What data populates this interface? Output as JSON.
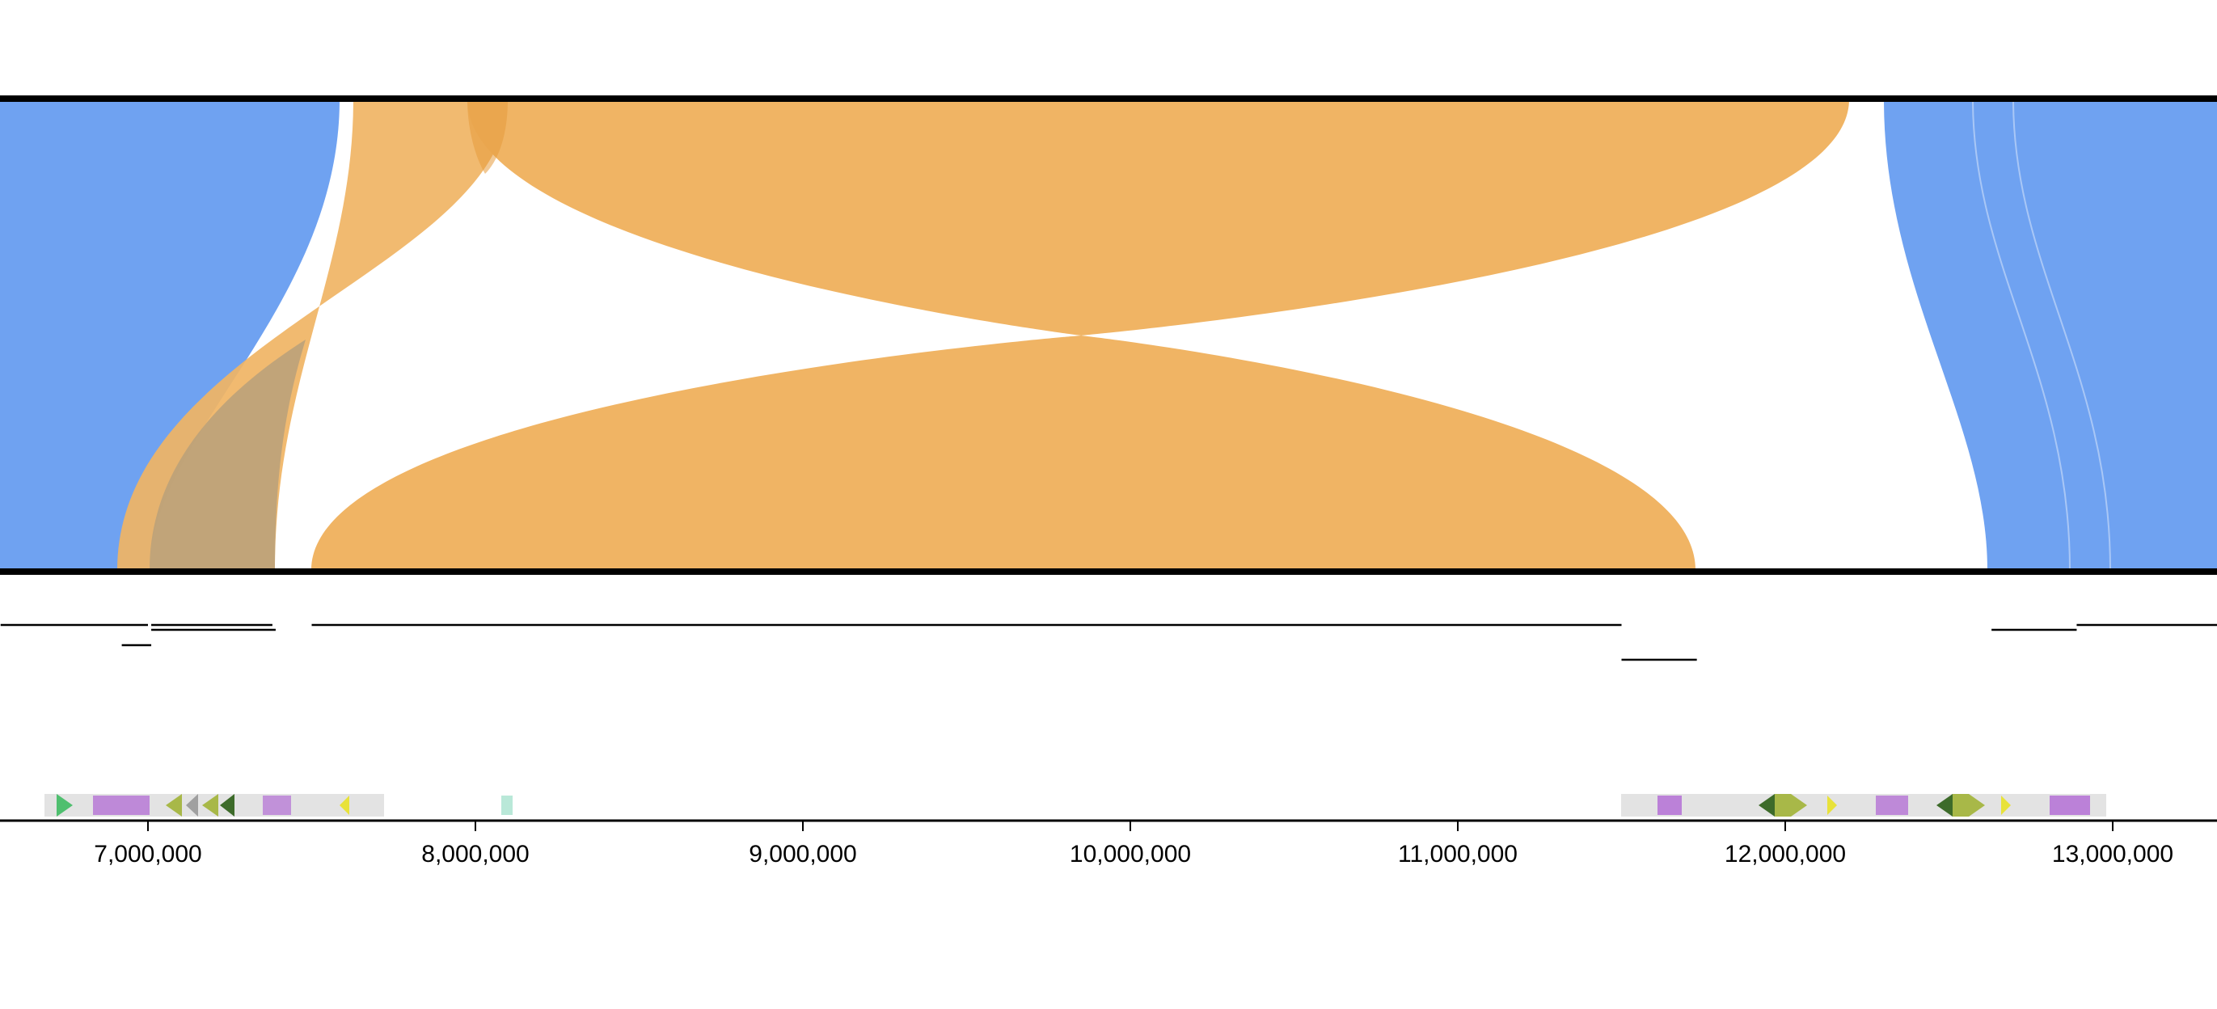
{
  "colors": {
    "collinear": "#6fa2f1",
    "inverted": "#f0b464",
    "inverted_dark": "#e59b3c",
    "overlap": "#b9a07a",
    "frame": "#000000",
    "gene_green": "#4fbf6f",
    "gene_purple": "#a040d0",
    "gene_olive": "#a8b848",
    "gene_gray": "#b0b0b0",
    "gene_dark_green": "#3d6b2a",
    "gene_yellow": "#e8e23a",
    "gene_teal": "#7fd6b8"
  },
  "axis": {
    "ticks": [
      "7,000,000",
      "8,000,000",
      "9,000,000",
      "10,000,000",
      "11,000,000",
      "12,000,000",
      "13,000,000"
    ]
  },
  "chart_data": {
    "type": "synteny",
    "x_ticks": [
      7000000,
      8000000,
      9000000,
      10000000,
      11000000,
      12000000,
      13000000
    ],
    "blocks": [
      {
        "kind": "collinear",
        "top": [
          6550000,
          7580000
        ],
        "bottom": [
          6550000,
          7000000
        ]
      },
      {
        "kind": "collinear",
        "top": [
          12860000,
          13300000
        ],
        "bottom": [
          13160000,
          13300000
        ]
      },
      {
        "kind": "inverted",
        "top": [
          7630000,
          8100000
        ],
        "bottom": [
          6900000,
          7390000
        ]
      },
      {
        "kind": "inverted",
        "top": [
          7970000,
          12160000
        ],
        "bottom": [
          7500000,
          11750000
        ]
      }
    ],
    "alignments": [
      {
        "start": 6550000,
        "end": 7000000,
        "row": 0
      },
      {
        "start": 7010000,
        "end": 7380000,
        "row": 0
      },
      {
        "start": 7010000,
        "end": 7390000,
        "row": 1
      },
      {
        "start": 6920000,
        "end": 7010000,
        "row": 2
      },
      {
        "start": 7500000,
        "end": 8000000,
        "row": 0
      },
      {
        "start": 8000000,
        "end": 9000000,
        "row": 0
      },
      {
        "start": 9000000,
        "end": 9500000,
        "row": 0
      },
      {
        "start": 9500000,
        "end": 10500000,
        "row": 0
      },
      {
        "start": 10500000,
        "end": 11000000,
        "row": 0
      },
      {
        "start": 11000000,
        "end": 11500000,
        "row": 0
      },
      {
        "start": 11500000,
        "end": 11730000,
        "row": 3
      },
      {
        "start": 12630000,
        "end": 12890000,
        "row": 1
      },
      {
        "start": 12890000,
        "end": 13000000,
        "row": 0
      },
      {
        "start": 13000000,
        "end": 13330000,
        "row": 0
      }
    ]
  }
}
